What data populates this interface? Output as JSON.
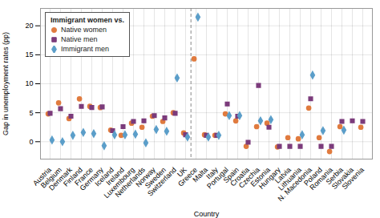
{
  "chart_data": {
    "type": "scatter",
    "xlabel": "Country",
    "ylabel": "Gap in unemployment rates (pp)",
    "legend_title": "Immigrant women vs.",
    "categories": [
      "Austria",
      "Belgium",
      "Denmark",
      "Finland",
      "France",
      "Germany",
      "Iceland",
      "Ireland",
      "Luxembourg",
      "Netherlands",
      "Norway",
      "Sweden",
      "Switzerland",
      "UK",
      "Greece",
      "Malta",
      "Italy",
      "Portugal",
      "Spain",
      "Croatia",
      "Czechia",
      "Estonia",
      "Hungary",
      "Latvia",
      "Lithuania",
      "N. Macedonia",
      "Poland",
      "Romania",
      "Serbia",
      "Slovakia",
      "Slovenia"
    ],
    "series": [
      {
        "name": "Native women",
        "color": "#E07B3F",
        "marker": "circle",
        "values": [
          4.8,
          6.7,
          4.0,
          7.4,
          6.1,
          5.9,
          2.0,
          1.1,
          3.2,
          2.5,
          4.4,
          3.5,
          5.0,
          1.5,
          14.3,
          1.2,
          1.1,
          4.8,
          3.6,
          -0.8,
          2.6,
          3.2,
          -0.9,
          0.7,
          0.5,
          5.8,
          0.7,
          -1.7,
          2.6,
          null,
          2.5
        ]
      },
      {
        "name": "Native men",
        "color": "#7B3B7B",
        "marker": "square",
        "values": [
          4.9,
          5.7,
          4.4,
          6.1,
          5.9,
          6.0,
          1.9,
          2.6,
          3.5,
          3.6,
          4.5,
          4.1,
          4.9,
          1.2,
          null,
          1.1,
          1.1,
          6.5,
          4.4,
          -0.1,
          9.7,
          2.5,
          -0.8,
          -0.8,
          -0.8,
          7.4,
          -0.8,
          -0.8,
          3.5,
          3.6,
          3.5
        ]
      },
      {
        "name": "Immigrant men",
        "color": "#5B9EC9",
        "marker": "diamond",
        "values": [
          0.3,
          0.0,
          1.1,
          1.6,
          1.4,
          -0.7,
          1.2,
          1.2,
          1.3,
          -0.2,
          2.1,
          1.8,
          11.0,
          0.8,
          21.5,
          0.8,
          1.1,
          4.5,
          4.5,
          null,
          3.6,
          3.8,
          null,
          null,
          1.2,
          11.5,
          1.9,
          null,
          2.0,
          null,
          null
        ]
      }
    ],
    "separator_after": "UK",
    "ylim": [
      -3,
      23
    ],
    "yticks": [
      0,
      5,
      10,
      15,
      20
    ],
    "grid": true,
    "legend": "top-left"
  }
}
